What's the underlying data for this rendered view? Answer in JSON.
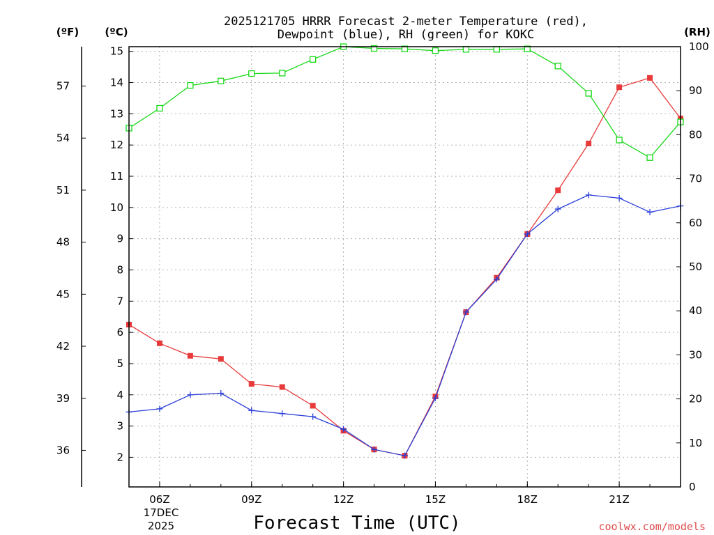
{
  "chart_data": {
    "type": "line",
    "title_line1": "2025121705 HRRR Forecast 2-meter Temperature (red),",
    "title_line2": "Dewpoint (blue), RH (green) for KOKC",
    "xlabel": "Forecast Time (UTC)",
    "unit_left_f": "(ºF)",
    "unit_left_c": "(ºC)",
    "unit_right": "(RH)",
    "credit": "coolwx.com/models",
    "date_label_line1": "17DEC",
    "date_label_line2": "2025",
    "x_hours": [
      5,
      6,
      7,
      8,
      9,
      10,
      11,
      12,
      13,
      14,
      15,
      16,
      17,
      18,
      19,
      20,
      21,
      22,
      23
    ],
    "x_ticks": [
      {
        "hour": 6,
        "label": "06Z"
      },
      {
        "hour": 9,
        "label": "09Z"
      },
      {
        "hour": 12,
        "label": "12Z"
      },
      {
        "hour": 15,
        "label": "15Z"
      },
      {
        "hour": 18,
        "label": "18Z"
      },
      {
        "hour": 21,
        "label": "21Z"
      }
    ],
    "xlim": [
      5,
      23
    ],
    "ylim_c": [
      1.05,
      15.15
    ],
    "ylim_rh": [
      0,
      100
    ],
    "y_ticks_c": [
      "2",
      "3",
      "4",
      "5",
      "6",
      "7",
      "8",
      "9",
      "10",
      "11",
      "12",
      "13",
      "14",
      "15"
    ],
    "y_ticks_f": [
      "36",
      "39",
      "42",
      "45",
      "48",
      "51",
      "54",
      "57"
    ],
    "y_ticks_rh": [
      "0",
      "10",
      "20",
      "30",
      "40",
      "50",
      "60",
      "70",
      "80",
      "90",
      "100"
    ],
    "grid": true,
    "series": [
      {
        "name": "Temperature",
        "color": "#e83a3a",
        "axis": "c",
        "marker": "filled-square",
        "values": [
          6.25,
          5.65,
          5.25,
          5.15,
          4.35,
          4.25,
          3.65,
          2.85,
          2.25,
          2.05,
          3.95,
          6.65,
          7.75,
          9.15,
          10.55,
          12.05,
          13.85,
          14.15,
          12.85
        ]
      },
      {
        "name": "Dewpoint",
        "color": "#2a3fd8",
        "axis": "c",
        "marker": "plus",
        "values": [
          3.45,
          3.55,
          4.0,
          4.05,
          3.5,
          3.4,
          3.3,
          2.9,
          2.25,
          2.05,
          3.9,
          6.65,
          7.7,
          9.15,
          9.95,
          10.4,
          10.3,
          9.85,
          10.05
        ]
      },
      {
        "name": "RH",
        "color": "#18d818",
        "axis": "rh",
        "marker": "open-square",
        "values": [
          81.5,
          86,
          91.2,
          92.2,
          93.9,
          94,
          97.1,
          100,
          99.6,
          99.5,
          99.1,
          99.4,
          99.4,
          99.5,
          95.6,
          89.4,
          78.8,
          74.8,
          82.9
        ]
      }
    ]
  }
}
